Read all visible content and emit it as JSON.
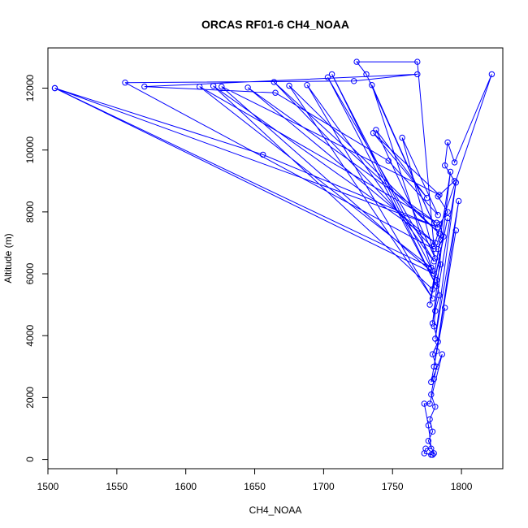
{
  "chart_data": {
    "type": "line",
    "title": "ORCAS RF01-6 CH4_NOAA",
    "xlabel": "CH4_NOAA",
    "ylabel": "Altitude (m)",
    "xlim": [
      1500,
      1830
    ],
    "ylim": [
      -300,
      13300
    ],
    "xticks": [
      1500,
      1550,
      1600,
      1650,
      1700,
      1750,
      1800
    ],
    "yticks": [
      0,
      2000,
      4000,
      6000,
      8000,
      10000,
      12000
    ],
    "grid": false,
    "legend": "none",
    "color": "#0000ff",
    "series": [
      {
        "points": [
          [
            1778,
            150
          ],
          [
            1780,
            200
          ],
          [
            1776,
            600
          ],
          [
            1779,
            900
          ],
          [
            1777,
            1300
          ],
          [
            1781,
            1700
          ],
          [
            1778,
            2100
          ],
          [
            1780,
            2600
          ],
          [
            1782,
            3000
          ],
          [
            1779,
            3400
          ],
          [
            1783,
            3800
          ],
          [
            1780,
            4300
          ],
          [
            1781,
            4800
          ],
          [
            1784,
            5300
          ],
          [
            1782,
            5800
          ],
          [
            1785,
            6300
          ],
          [
            1783,
            6800
          ],
          [
            1787,
            7200
          ],
          [
            1784,
            7600
          ],
          [
            1790,
            8000
          ],
          [
            1783,
            8500
          ],
          [
            1795,
            9000
          ],
          [
            1788,
            9500
          ],
          [
            1790,
            10250
          ],
          [
            1795,
            9600
          ],
          [
            1822,
            12450
          ],
          [
            1780,
            6900
          ],
          [
            1768,
            12850
          ],
          [
            1724,
            12850
          ],
          [
            1731,
            12450
          ],
          [
            1785,
            7100
          ],
          [
            1735,
            12100
          ],
          [
            1779,
            6100
          ],
          [
            1706,
            12450
          ],
          [
            1782,
            5600
          ],
          [
            1703,
            12350
          ],
          [
            1780,
            6400
          ],
          [
            1688,
            12100
          ],
          [
            1779,
            5200
          ],
          [
            1675,
            12080
          ],
          [
            1784,
            7300
          ],
          [
            1664,
            12200
          ],
          [
            1780,
            6800
          ],
          [
            1556,
            12180
          ],
          [
            1722,
            12230
          ],
          [
            1768,
            12450
          ],
          [
            1570,
            12050
          ],
          [
            1665,
            11850
          ],
          [
            1747,
            9650
          ],
          [
            1783,
            7900
          ],
          [
            1757,
            10400
          ],
          [
            1781,
            6500
          ],
          [
            1738,
            10650
          ],
          [
            1775,
            8450
          ],
          [
            1736,
            10550
          ],
          [
            1784,
            8550
          ],
          [
            1626,
            12050
          ],
          [
            1780,
            6000
          ],
          [
            1505,
            12000
          ],
          [
            1656,
            9850
          ],
          [
            1783,
            7500
          ],
          [
            1505,
            12000
          ],
          [
            1778,
            6200
          ],
          [
            1610,
            12050
          ],
          [
            1782,
            7650
          ],
          [
            1645,
            12020
          ],
          [
            1781,
            7000
          ],
          [
            1620,
            12070
          ],
          [
            1779,
            5500
          ],
          [
            1790,
            7800
          ],
          [
            1777,
            5000
          ],
          [
            1792,
            9300
          ],
          [
            1779,
            4400
          ],
          [
            1796,
            8950
          ],
          [
            1781,
            3900
          ],
          [
            1798,
            8350
          ],
          [
            1782,
            3500
          ],
          [
            1796,
            7400
          ],
          [
            1780,
            3000
          ],
          [
            1788,
            4900
          ],
          [
            1778,
            2500
          ],
          [
            1786,
            3400
          ],
          [
            1777,
            1800
          ],
          [
            1773,
            1800
          ],
          [
            1776,
            1100
          ],
          [
            1778,
            350
          ],
          [
            1774,
            350
          ],
          [
            1773,
            200
          ],
          [
            1779,
            150
          ]
        ]
      }
    ]
  }
}
